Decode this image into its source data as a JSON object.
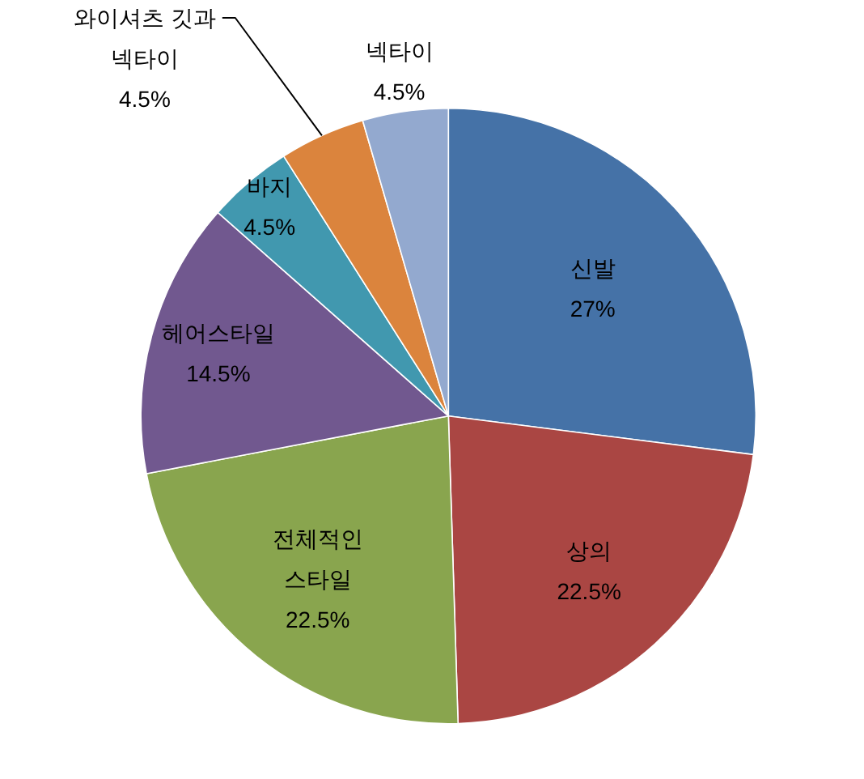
{
  "chart_data": {
    "type": "pie",
    "categories": [
      "신발",
      "상의",
      "전체적인 스타일",
      "헤어스타일",
      "바지",
      "와이셔츠 깃과 넥타이",
      "넥타이"
    ],
    "values": [
      27,
      22.5,
      22.5,
      14.5,
      4.5,
      4.5,
      4.5
    ],
    "colors": [
      "#4572a7",
      "#aa4643",
      "#89a54e",
      "#71588f",
      "#4198af",
      "#db843d",
      "#93a9cf"
    ],
    "value_labels": [
      "27%",
      "22.5%",
      "22.5%",
      "14.5%",
      "4.5%",
      "4.5%",
      "4.5%"
    ]
  }
}
